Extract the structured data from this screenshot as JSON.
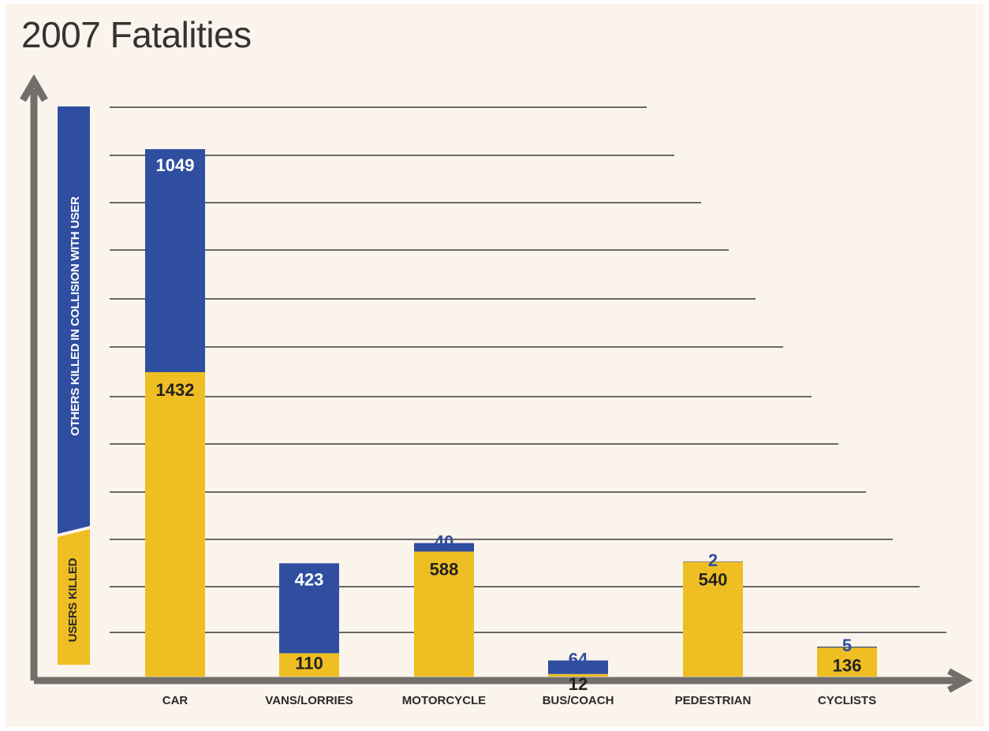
{
  "chart_data": {
    "type": "bar",
    "stacked": true,
    "title": "2007 Fatalities",
    "categories": [
      "CAR",
      "VANS/LORRIES",
      "MOTORCYCLE",
      "BUS/COACH",
      "PEDESTRIAN",
      "CYCLISTS"
    ],
    "series": [
      {
        "name": "USERS KILLED",
        "color": "#efbe22",
        "values": [
          1432,
          110,
          588,
          12,
          540,
          136
        ]
      },
      {
        "name": "OTHERS KILLED IN COLLISION WITH USER",
        "color": "#2f4ea0",
        "values": [
          1049,
          423,
          40,
          64,
          2,
          5
        ]
      }
    ],
    "grid": true,
    "legend_position": "left"
  }
}
